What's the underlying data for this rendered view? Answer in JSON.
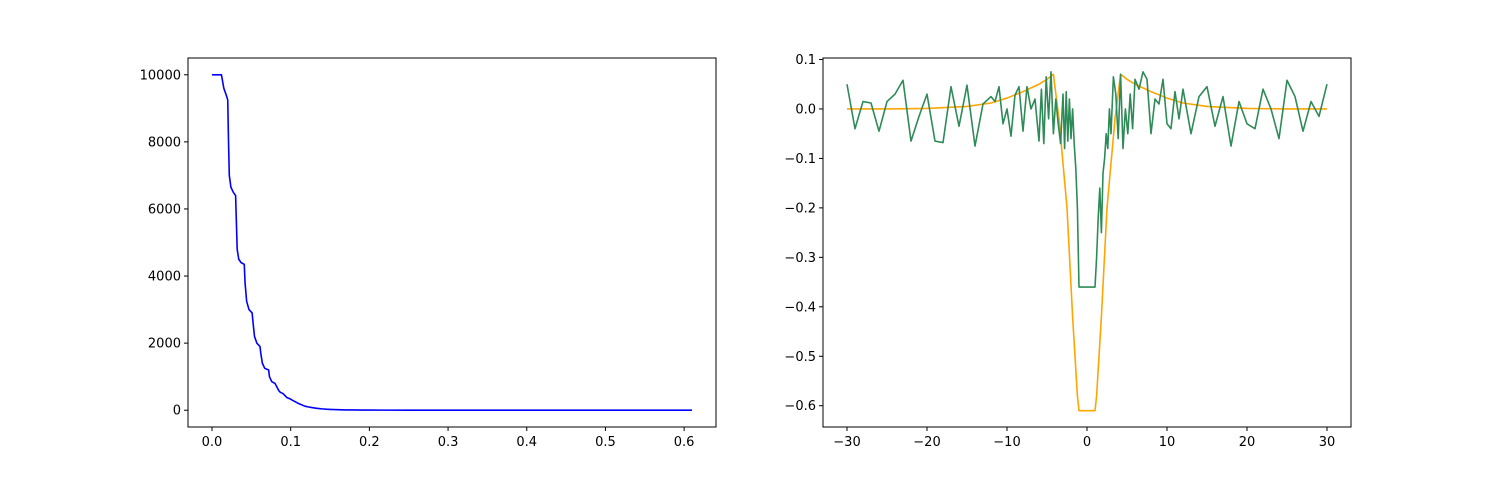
{
  "chart_data": [
    {
      "type": "line",
      "title": "",
      "xlabel": "",
      "ylabel": "",
      "xlim": [
        -0.0305,
        0.6405
      ],
      "ylim": [
        -500,
        10500
      ],
      "xticks": [
        0.0,
        0.1,
        0.2,
        0.3,
        0.4,
        0.5,
        0.6
      ],
      "xtick_labels": [
        "0.0",
        "0.1",
        "0.2",
        "0.3",
        "0.4",
        "0.5",
        "0.6"
      ],
      "yticks": [
        0,
        2000,
        4000,
        6000,
        8000,
        10000
      ],
      "ytick_labels": [
        "0",
        "2000",
        "4000",
        "6000",
        "8000",
        "10000"
      ],
      "grid": false,
      "series": [
        {
          "color": "#0000ff",
          "x": [
            0.0,
            0.012,
            0.015,
            0.018,
            0.02,
            0.021,
            0.022,
            0.024,
            0.027,
            0.03,
            0.031,
            0.032,
            0.034,
            0.037,
            0.041,
            0.042,
            0.044,
            0.047,
            0.051,
            0.052,
            0.054,
            0.057,
            0.061,
            0.062,
            0.064,
            0.067,
            0.072,
            0.073,
            0.076,
            0.08,
            0.085,
            0.087,
            0.09,
            0.095,
            0.1,
            0.102,
            0.106,
            0.11,
            0.115,
            0.118,
            0.122,
            0.127,
            0.132,
            0.136,
            0.14,
            0.145,
            0.15,
            0.155,
            0.16,
            0.17,
            0.18,
            0.19,
            0.2,
            0.22,
            0.25,
            0.3,
            0.35,
            0.4,
            0.45,
            0.5,
            0.55,
            0.61
          ],
          "y": [
            10000,
            10000,
            9600,
            9400,
            9250,
            8000,
            7000,
            6650,
            6500,
            6400,
            5600,
            4800,
            4500,
            4400,
            4350,
            3800,
            3250,
            3000,
            2900,
            2650,
            2200,
            2000,
            1900,
            1700,
            1400,
            1250,
            1200,
            1000,
            850,
            800,
            580,
            530,
            500,
            380,
            330,
            300,
            250,
            200,
            150,
            120,
            100,
            80,
            60,
            50,
            40,
            30,
            25,
            20,
            15,
            10,
            8,
            5,
            4,
            3,
            2,
            1,
            1,
            0,
            0,
            0,
            0,
            0
          ]
        }
      ]
    },
    {
      "type": "line",
      "title": "",
      "xlabel": "",
      "ylabel": "",
      "xlim": [
        -33,
        33
      ],
      "ylim": [
        -0.643,
        0.103
      ],
      "xticks": [
        -30,
        -20,
        -10,
        0,
        10,
        20,
        30
      ],
      "xtick_labels": [
        "−30",
        "−20",
        "−10",
        "0",
        "10",
        "20",
        "30"
      ],
      "yticks": [
        0.1,
        0.0,
        -0.1,
        -0.2,
        -0.3,
        -0.4,
        -0.5,
        -0.6
      ],
      "ytick_labels": [
        "0.1",
        "0.0",
        "−0.1",
        "−0.2",
        "−0.3",
        "−0.4",
        "−0.5",
        "−0.6"
      ],
      "grid": false,
      "series": [
        {
          "color": "#ffa500",
          "x": [
            -30,
            -25,
            -20,
            -15,
            -12,
            -10,
            -8,
            -6,
            -5,
            -4.2,
            -3.5,
            -2.5,
            -1.8,
            -1.2,
            -1,
            1,
            1.2,
            1.8,
            2.5,
            3.5,
            4.2,
            5,
            6,
            8,
            10,
            12,
            15,
            20,
            25,
            30
          ],
          "y": [
            0.0,
            0.0,
            0.001,
            0.005,
            0.012,
            0.022,
            0.035,
            0.05,
            0.06,
            0.07,
            -0.02,
            -0.2,
            -0.42,
            -0.58,
            -0.61,
            -0.61,
            -0.58,
            -0.42,
            -0.2,
            -0.02,
            0.07,
            0.06,
            0.05,
            0.035,
            0.022,
            0.012,
            0.005,
            0.001,
            0.0,
            0.0
          ]
        },
        {
          "color": "#2e8b57",
          "x": [
            -30.0,
            -29.0,
            -28.0,
            -27.0,
            -26.0,
            -25.0,
            -24.0,
            -23.0,
            -22.0,
            -21.0,
            -20.0,
            -19.0,
            -18.0,
            -17.0,
            -16.0,
            -15.0,
            -14.0,
            -13.0,
            -12.0,
            -11.5,
            -11.0,
            -10.5,
            -10.0,
            -9.5,
            -9.0,
            -8.5,
            -8.0,
            -7.5,
            -7.0,
            -6.5,
            -6.0,
            -5.7,
            -5.4,
            -5.1,
            -4.8,
            -4.5,
            -4.2,
            -3.9,
            -3.6,
            -3.3,
            -3.0,
            -2.8,
            -2.6,
            -2.4,
            -2.2,
            -2.0,
            -1.8,
            -1.6,
            -1.4,
            -1.2,
            -1.0,
            1.0,
            1.2,
            1.4,
            1.6,
            1.8,
            2.0,
            2.2,
            2.4,
            2.6,
            2.8,
            3.0,
            3.3,
            3.6,
            3.9,
            4.2,
            4.5,
            4.8,
            5.1,
            5.4,
            5.7,
            6.0,
            6.5,
            7.0,
            7.5,
            8.0,
            8.5,
            9.0,
            9.5,
            10.0,
            10.5,
            11.0,
            11.5,
            12.0,
            13.0,
            14.0,
            15.0,
            16.0,
            17.0,
            18.0,
            19.0,
            20.0,
            21.0,
            22.0,
            23.0,
            24.0,
            25.0,
            26.0,
            27.0,
            28.0,
            29.0,
            30.0
          ],
          "y": [
            0.05,
            -0.04,
            0.015,
            0.012,
            -0.045,
            0.015,
            0.03,
            0.058,
            -0.065,
            -0.015,
            0.03,
            -0.065,
            -0.068,
            0.045,
            -0.035,
            0.048,
            -0.075,
            0.01,
            0.025,
            0.015,
            0.045,
            -0.03,
            0.0,
            -0.055,
            0.028,
            0.045,
            -0.045,
            0.045,
            0.0,
            0.02,
            -0.065,
            0.04,
            -0.07,
            0.065,
            -0.02,
            0.075,
            -0.05,
            0.02,
            -0.03,
            -0.07,
            0.03,
            -0.08,
            0.035,
            -0.065,
            0.02,
            -0.06,
            0.0,
            -0.07,
            -0.12,
            -0.2,
            -0.36,
            -0.36,
            -0.3,
            -0.22,
            -0.16,
            -0.25,
            -0.13,
            -0.1,
            -0.05,
            -0.08,
            0.0,
            -0.05,
            0.065,
            0.03,
            -0.06,
            0.07,
            -0.08,
            0.0,
            -0.05,
            0.03,
            -0.04,
            0.06,
            0.04,
            0.075,
            0.06,
            -0.05,
            0.02,
            0.01,
            0.06,
            -0.03,
            -0.04,
            0.035,
            -0.02,
            0.04,
            -0.05,
            0.025,
            0.045,
            -0.035,
            0.025,
            -0.075,
            0.015,
            -0.03,
            -0.04,
            0.04,
            0.0,
            -0.06,
            0.058,
            0.025,
            -0.045,
            0.015,
            -0.015,
            0.05
          ]
        }
      ]
    }
  ]
}
